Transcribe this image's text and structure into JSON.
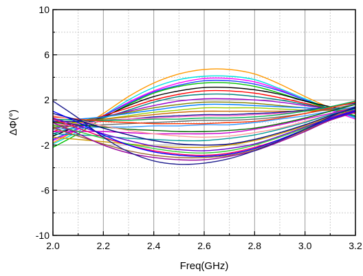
{
  "chart_data": {
    "type": "line",
    "title": "",
    "xlabel": "Freq(GHz)",
    "ylabel": "ΔΦ(°)",
    "xlim": [
      2.0,
      3.2
    ],
    "ylim": [
      -10,
      10
    ],
    "xticks": [
      2.0,
      2.2,
      2.4,
      2.6,
      2.8,
      3.0,
      3.2
    ],
    "yticks": [
      -10,
      -6,
      -2,
      2,
      6,
      10
    ],
    "xtick_labels": [
      "2.0",
      "2.2",
      "2.4",
      "2.6",
      "2.8",
      "3.0",
      "3.2"
    ],
    "ytick_labels": [
      "-10",
      "-6",
      "-2",
      "2",
      "6",
      "10"
    ],
    "grid": true,
    "legend": "none",
    "x": [
      2.0,
      2.1,
      2.2,
      2.3,
      2.4,
      2.5,
      2.6,
      2.7,
      2.8,
      2.9,
      3.0,
      3.1,
      3.2
    ],
    "series": [
      {
        "color": "#ff9900",
        "values": [
          -1.8,
          -0.6,
          0.8,
          2.3,
          3.5,
          4.3,
          4.7,
          4.7,
          4.3,
          3.4,
          2.3,
          1.3,
          0.5
        ]
      },
      {
        "color": "#00e0e0",
        "values": [
          -1.9,
          -0.8,
          0.6,
          2.0,
          3.1,
          3.8,
          4.1,
          4.1,
          3.8,
          3.0,
          2.1,
          1.2,
          0.4
        ]
      },
      {
        "color": "#ff00ff",
        "values": [
          -1.6,
          -0.6,
          0.6,
          1.8,
          2.8,
          3.5,
          3.9,
          3.9,
          3.6,
          2.9,
          2.0,
          1.1,
          0.3
        ]
      },
      {
        "color": "#2040ff",
        "values": [
          -1.5,
          -0.5,
          0.6,
          1.7,
          2.7,
          3.3,
          3.7,
          3.7,
          3.4,
          2.8,
          2.0,
          1.2,
          0.5
        ]
      },
      {
        "color": "#00c000",
        "values": [
          -2.2,
          -1.0,
          0.4,
          1.6,
          2.6,
          3.2,
          3.5,
          3.5,
          3.2,
          2.6,
          1.9,
          1.2,
          0.6
        ]
      },
      {
        "color": "#000000",
        "values": [
          -1.2,
          -0.3,
          0.5,
          1.5,
          2.3,
          2.8,
          3.1,
          3.1,
          2.9,
          2.5,
          1.9,
          1.4,
          1.0
        ]
      },
      {
        "color": "#ff0000",
        "values": [
          -0.8,
          -0.1,
          0.6,
          1.3,
          2.0,
          2.5,
          2.8,
          2.8,
          2.6,
          2.2,
          1.7,
          1.2,
          0.8
        ]
      },
      {
        "color": "#008080",
        "values": [
          -1.0,
          -0.3,
          0.4,
          1.1,
          1.8,
          2.3,
          2.5,
          2.5,
          2.3,
          2.0,
          1.6,
          1.2,
          0.9
        ]
      },
      {
        "color": "#9900cc",
        "values": [
          -0.6,
          0.0,
          0.5,
          1.0,
          1.5,
          1.9,
          2.1,
          2.1,
          2.0,
          1.8,
          1.5,
          1.2,
          1.0
        ]
      },
      {
        "color": "#808000",
        "values": [
          -0.5,
          0.1,
          0.5,
          0.9,
          1.3,
          1.6,
          1.8,
          1.8,
          1.7,
          1.5,
          1.3,
          1.1,
          1.0
        ]
      },
      {
        "color": "#0080ff",
        "values": [
          0.2,
          0.3,
          0.5,
          0.8,
          1.1,
          1.4,
          1.6,
          1.6,
          1.5,
          1.4,
          1.3,
          1.2,
          1.3
        ]
      },
      {
        "color": "#99cc00",
        "values": [
          -0.3,
          0.0,
          0.3,
          0.6,
          0.9,
          1.1,
          1.3,
          1.3,
          1.3,
          1.2,
          1.1,
          1.1,
          1.2
        ]
      },
      {
        "color": "#cc6600",
        "values": [
          0.0,
          0.1,
          0.3,
          0.5,
          0.7,
          0.9,
          1.0,
          1.0,
          1.0,
          1.0,
          1.0,
          1.1,
          1.3
        ]
      },
      {
        "color": "#1a1a99",
        "values": [
          0.1,
          0.1,
          0.2,
          0.3,
          0.5,
          0.6,
          0.7,
          0.7,
          0.8,
          0.9,
          1.1,
          1.4,
          1.7
        ]
      },
      {
        "color": "#ff66cc",
        "values": [
          -0.2,
          -0.1,
          0.1,
          0.3,
          0.4,
          0.5,
          0.6,
          0.6,
          0.7,
          0.8,
          1.0,
          1.4,
          1.8
        ]
      },
      {
        "color": "#00b050",
        "values": [
          0.3,
          0.2,
          0.2,
          0.2,
          0.3,
          0.3,
          0.4,
          0.4,
          0.5,
          0.7,
          1.0,
          1.4,
          1.9
        ]
      },
      {
        "color": "#666666",
        "values": [
          -0.4,
          -0.3,
          -0.2,
          -0.1,
          0.0,
          0.1,
          0.2,
          0.2,
          0.3,
          0.5,
          0.8,
          1.2,
          1.6
        ]
      },
      {
        "color": "#ff3300",
        "values": [
          0.5,
          0.3,
          0.1,
          0.0,
          -0.1,
          -0.1,
          -0.1,
          0.0,
          0.1,
          0.4,
          0.8,
          1.3,
          1.8
        ]
      },
      {
        "color": "#3399ff",
        "values": [
          -0.6,
          -0.5,
          -0.4,
          -0.4,
          -0.3,
          -0.3,
          -0.2,
          -0.2,
          0.0,
          0.3,
          0.6,
          1.0,
          1.4
        ]
      },
      {
        "color": "#006600",
        "values": [
          0.0,
          -0.2,
          -0.4,
          -0.6,
          -0.7,
          -0.8,
          -0.8,
          -0.7,
          -0.5,
          -0.1,
          0.4,
          1.0,
          1.6
        ]
      },
      {
        "color": "#cc00cc",
        "values": [
          -0.8,
          -0.8,
          -0.8,
          -0.9,
          -1.0,
          -1.0,
          -1.0,
          -0.9,
          -0.6,
          -0.2,
          0.3,
          0.8,
          1.3
        ]
      },
      {
        "color": "#ff9999",
        "values": [
          0.6,
          0.2,
          -0.3,
          -0.7,
          -1.0,
          -1.2,
          -1.3,
          -1.2,
          -0.9,
          -0.5,
          0.1,
          0.7,
          1.2
        ]
      },
      {
        "color": "#009999",
        "values": [
          -1.0,
          -1.1,
          -1.2,
          -1.4,
          -1.5,
          -1.6,
          -1.6,
          -1.4,
          -1.1,
          -0.6,
          0.0,
          0.7,
          1.2
        ]
      },
      {
        "color": "#000080",
        "values": [
          0.8,
          0.2,
          -0.5,
          -1.1,
          -1.6,
          -1.9,
          -2.0,
          -1.9,
          -1.5,
          -0.9,
          -0.2,
          0.6,
          1.3
        ]
      },
      {
        "color": "#cc9900",
        "values": [
          -1.3,
          -1.5,
          -1.7,
          -1.9,
          -2.1,
          -2.2,
          -2.2,
          -2.0,
          -1.6,
          -1.0,
          -0.3,
          0.5,
          1.1
        ]
      },
      {
        "color": "#6600cc",
        "values": [
          0.4,
          -0.3,
          -1.0,
          -1.6,
          -2.1,
          -2.4,
          -2.5,
          -2.3,
          -1.9,
          -1.2,
          -0.4,
          0.4,
          1.1
        ]
      },
      {
        "color": "#33cc33",
        "values": [
          -0.2,
          -0.8,
          -1.4,
          -1.9,
          -2.3,
          -2.6,
          -2.7,
          -2.5,
          -2.0,
          -1.3,
          -0.5,
          0.3,
          1.0
        ]
      },
      {
        "color": "#ff0066",
        "values": [
          0.3,
          -0.5,
          -1.3,
          -2.0,
          -2.5,
          -2.8,
          -2.9,
          -2.7,
          -2.2,
          -1.5,
          -0.6,
          0.3,
          1.0
        ]
      },
      {
        "color": "#0000ff",
        "values": [
          1.0,
          0.0,
          -1.1,
          -2.0,
          -2.6,
          -2.9,
          -3.0,
          -2.8,
          -2.3,
          -1.5,
          -0.6,
          0.3,
          1.0
        ]
      },
      {
        "color": "#996633",
        "values": [
          -0.5,
          -1.2,
          -1.9,
          -2.5,
          -2.9,
          -3.1,
          -3.1,
          -2.9,
          -2.4,
          -1.6,
          -0.7,
          0.2,
          0.9
        ]
      },
      {
        "color": "#990099",
        "values": [
          0.0,
          -1.0,
          -2.0,
          -2.7,
          -3.1,
          -3.3,
          -3.3,
          -3.0,
          -2.5,
          -1.7,
          -0.8,
          0.2,
          0.9
        ]
      },
      {
        "color": "#1f1f8f",
        "values": [
          1.9,
          0.4,
          -1.3,
          -2.6,
          -3.4,
          -3.7,
          -3.6,
          -3.2,
          -2.5,
          -1.6,
          -0.6,
          0.5,
          1.4
        ]
      }
    ]
  }
}
